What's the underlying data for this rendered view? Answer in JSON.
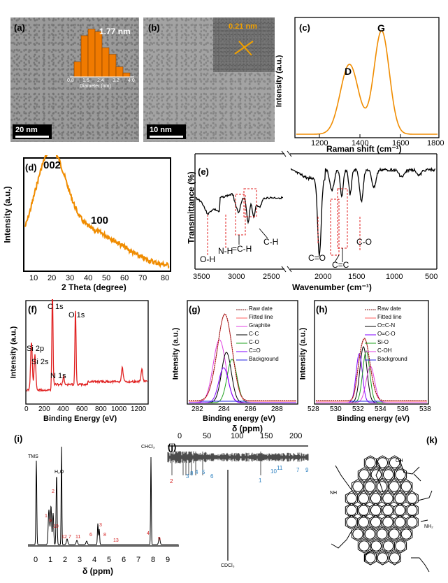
{
  "panel_a": {
    "label": "(a)",
    "size_label": "1.77 nm",
    "axis_label": "Diameter (nm)",
    "ticks": [
      "0.8",
      "1.6",
      "2.4",
      "3.2",
      "4.0"
    ],
    "scale": "20 nm",
    "hist": [
      0.3,
      0.82,
      0.95,
      0.9,
      0.58,
      0.45,
      0.2,
      0.08
    ]
  },
  "panel_b": {
    "label": "(b)",
    "lattice": "0.21 nm",
    "scale": "10 nm"
  },
  "panel_c": {
    "label": "(c)",
    "ylabel": "Intensity (a.u.)",
    "xlabel": "Raman shift (cm⁻¹)",
    "ticks": [
      "1200",
      "1400",
      "1600",
      "1800"
    ],
    "peak_d": "D",
    "peak_g": "G"
  },
  "panel_d": {
    "label": "(d)",
    "peak1": "002",
    "peak2": "100",
    "ylabel": "Intensity (a.u.)",
    "xlabel": "2 Theta (degree)",
    "ticks": [
      "10",
      "20",
      "30",
      "40",
      "50",
      "60",
      "70",
      "80"
    ]
  },
  "panel_e": {
    "label": "(e)",
    "ylabel": "Transmittance (%)",
    "xlabel": "Wavenumber (cm⁻¹)",
    "ticks": [
      "3500",
      "3000",
      "2500",
      "2000",
      "1500",
      "1000",
      "500"
    ],
    "ann": {
      "oh": "O-H",
      "nh": "N-H",
      "ch1": "=C-H",
      "ch2": "C-H",
      "co": "C=O",
      "cc": "C=C",
      "c_o": "C-O"
    }
  },
  "panel_f": {
    "label": "(f)",
    "ylabel": "Intensity (a.u.)",
    "xlabel": "Binding Energy (eV)",
    "ticks": [
      "0",
      "200",
      "400",
      "600",
      "800",
      "1000",
      "1200"
    ],
    "peaks": {
      "c1s": "C 1s",
      "o1s": "O 1s",
      "si2p": "Si 2p",
      "si2s": "Si 2s",
      "n1s": "N 1s"
    }
  },
  "panel_g": {
    "label": "(g)",
    "ylabel": "Intensity (a.u.)",
    "xlabel": "Binding energy (eV)",
    "ticks": [
      "282",
      "284",
      "286",
      "288"
    ],
    "legend": [
      "Raw date",
      "Fitted line",
      "Graphite",
      "C-C",
      "C-O",
      "C=O",
      "Background"
    ]
  },
  "panel_h": {
    "label": "(h)",
    "ylabel": "Intensity (a.u.)",
    "xlabel": "Binding energy (eV)",
    "ticks": [
      "528",
      "530",
      "532",
      "534",
      "536",
      "538"
    ],
    "legend": [
      "Raw date",
      "Fitted line",
      "O=C-N",
      "O=C-O",
      "Si-O",
      "C-OH",
      "Background"
    ]
  },
  "panel_i": {
    "label": "(i)",
    "xlabel": "δ (ppm)",
    "ticks": [
      "0",
      "1",
      "2",
      "3",
      "4",
      "5",
      "6",
      "7",
      "8",
      "9"
    ],
    "tms": "TMS",
    "h2o": "H₂O",
    "chcl3": "CHCl₃",
    "nums": [
      "1",
      "9",
      "10",
      "2",
      "12",
      "7",
      "11",
      "6",
      "3",
      "8",
      "13",
      "4",
      "5"
    ]
  },
  "panel_j": {
    "label": "(j)",
    "xlabel": "δ (ppm)",
    "ticks": [
      "0",
      "50",
      "100",
      "150",
      "200"
    ],
    "cdcl3": "CDCl₃",
    "nums_blue": [
      "3",
      "8",
      "4",
      "5",
      "6",
      "1",
      "10",
      "11",
      "7",
      "9"
    ],
    "num_red": "2"
  },
  "panel_k": {
    "label": "(k)",
    "oh": "OH",
    "nh": "NH",
    "nh2": "NH₂"
  },
  "colors": {
    "orange": "#f08c00",
    "red": "#e02020",
    "black": "#000000",
    "blue_num": "#2a7fc0",
    "red_num": "#d42020"
  }
}
